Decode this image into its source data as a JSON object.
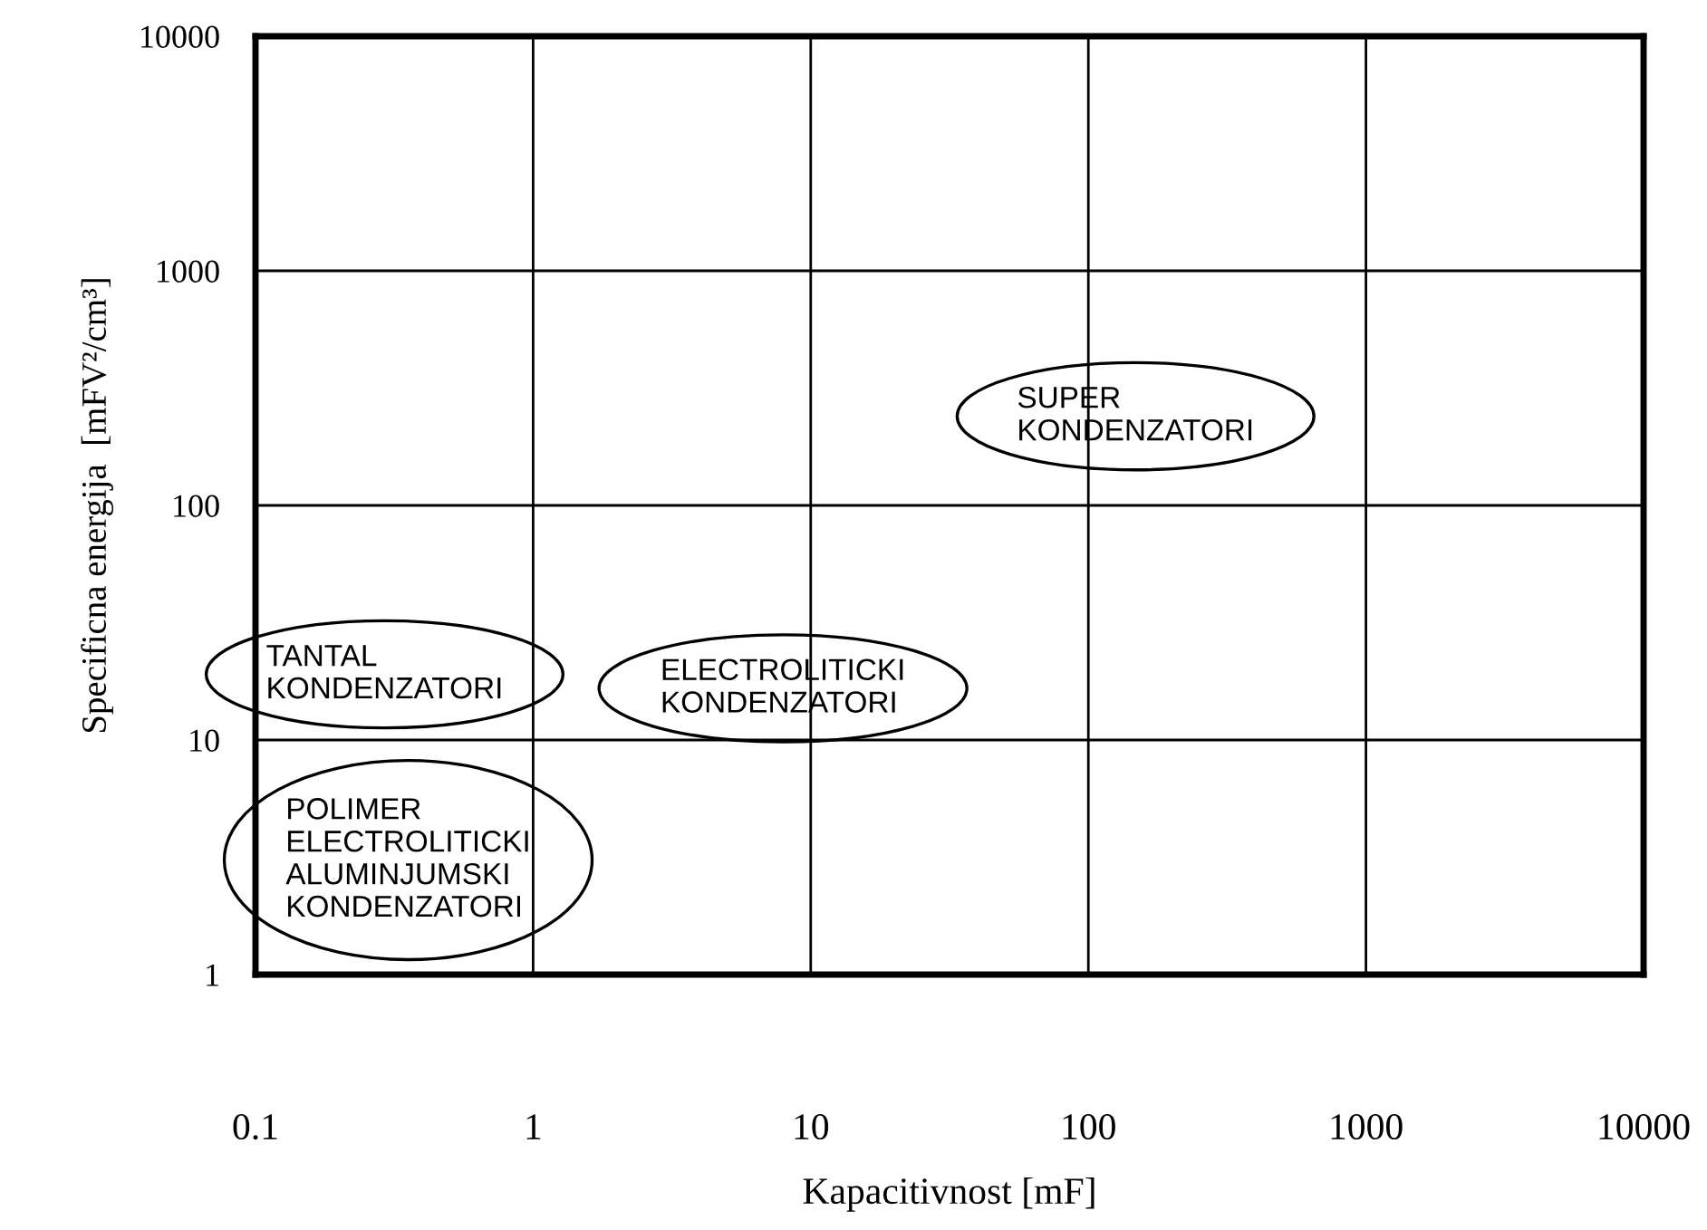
{
  "chart_data": {
    "type": "scatter",
    "xlabel": "Kapacitivnost [mF]",
    "ylabel": "Specificna energija  [mFV²/cm³]",
    "log": "xy",
    "xlim": [
      0.1,
      10000
    ],
    "ylim": [
      1,
      10000
    ],
    "xticks": [
      0.1,
      1,
      10,
      100,
      1000,
      10000
    ],
    "yticks": [
      1,
      10,
      100,
      1000,
      10000
    ],
    "grid": true,
    "annotations": [
      "SUPER\nKONDENZATORI",
      "TANTAL\nKONDENZATORI",
      "ELECTROLITICKI\nKONDENZATORI",
      "POLIMER\nELECTROLITICKI\nALUMINJUMSKI\nKONDENZATORI"
    ]
  }
}
